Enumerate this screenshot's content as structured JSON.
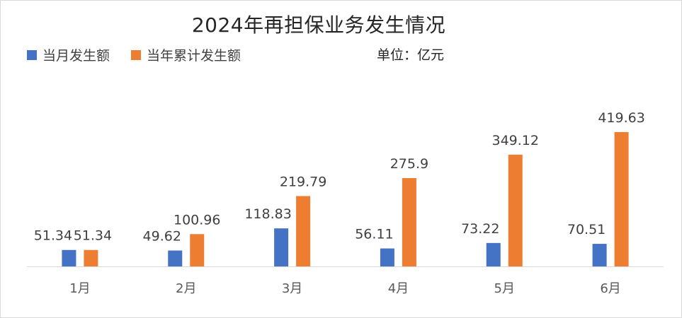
{
  "chart_data": {
    "type": "bar",
    "title": "2024年再担保业务发生情况",
    "unit": "单位：亿元",
    "categories": [
      "1月",
      "2月",
      "3月",
      "4月",
      "5月",
      "6月"
    ],
    "series": [
      {
        "name": "当月发生额",
        "color": "#4472C4",
        "values": [
          51.34,
          49.62,
          118.83,
          56.11,
          73.22,
          70.51
        ]
      },
      {
        "name": "当年累计发生额",
        "color": "#ED7D31",
        "values": [
          51.34,
          100.96,
          219.79,
          275.9,
          349.12,
          419.63
        ]
      }
    ],
    "data_labels": [
      [
        "51.34",
        "49.62",
        "118.83",
        "56.11",
        "73.22",
        "70.51"
      ],
      [
        "51.34",
        "100.96",
        "219.79",
        "275.9",
        "349.12",
        "419.63"
      ]
    ],
    "ylim": [
      0,
      450
    ],
    "grid": false,
    "legend_position": "top-left"
  }
}
